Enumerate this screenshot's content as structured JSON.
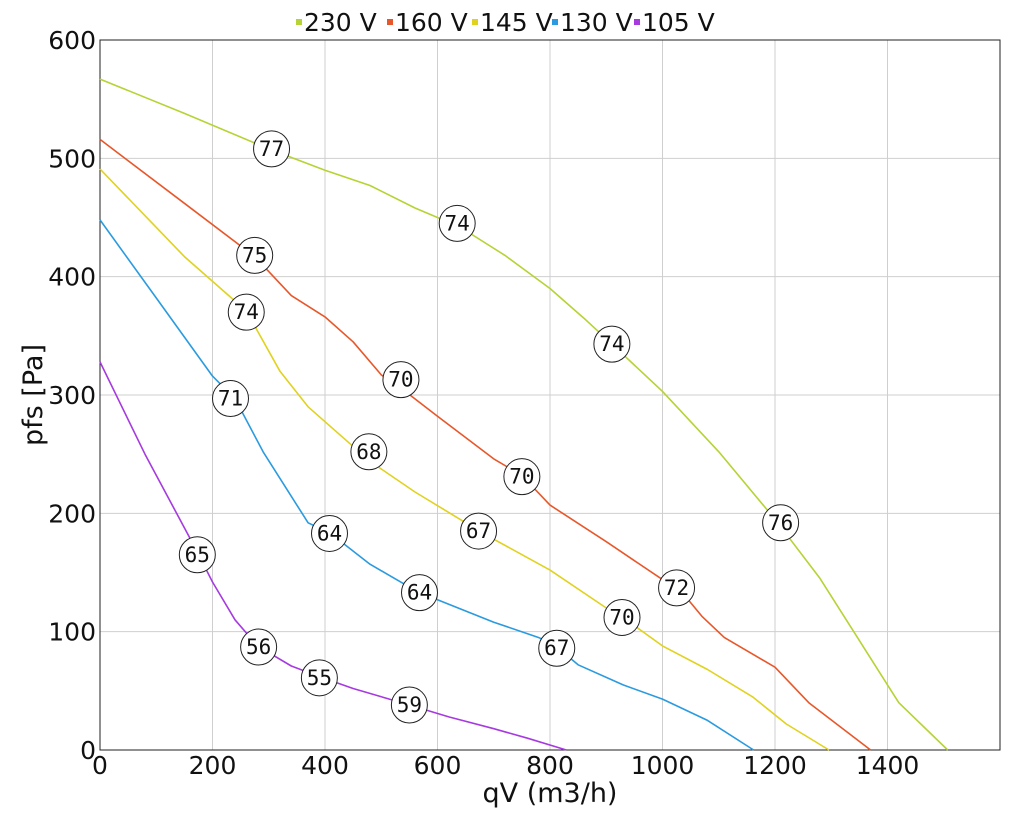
{
  "chart_data": {
    "type": "line",
    "xlabel": "qV (m3/h)",
    "ylabel": "pfs [Pa]",
    "xlim": [
      0,
      1600
    ],
    "ylim": [
      0,
      600
    ],
    "xticks": [
      0,
      200,
      400,
      600,
      800,
      1000,
      1200,
      1400
    ],
    "yticks": [
      0,
      100,
      200,
      300,
      400,
      500,
      600
    ],
    "grid": true,
    "legend_position": "top",
    "series": [
      {
        "name": "230 V",
        "color": "#b5d334",
        "points": [
          [
            0,
            567
          ],
          [
            150,
            538
          ],
          [
            300,
            508
          ],
          [
            400,
            490
          ],
          [
            480,
            477
          ],
          [
            560,
            458
          ],
          [
            640,
            442
          ],
          [
            720,
            418
          ],
          [
            800,
            390
          ],
          [
            860,
            365
          ],
          [
            910,
            343
          ],
          [
            1000,
            303
          ],
          [
            1100,
            252
          ],
          [
            1200,
            195
          ],
          [
            1280,
            145
          ],
          [
            1360,
            85
          ],
          [
            1420,
            40
          ],
          [
            1507,
            0
          ]
        ],
        "markers": [
          {
            "x": 305,
            "y": 508,
            "label": "77"
          },
          {
            "x": 635,
            "y": 445,
            "label": "74"
          },
          {
            "x": 910,
            "y": 343,
            "label": "74"
          },
          {
            "x": 1210,
            "y": 192,
            "label": "76"
          }
        ]
      },
      {
        "name": "160 V",
        "color": "#e8572a",
        "points": [
          [
            0,
            516
          ],
          [
            150,
            462
          ],
          [
            275,
            417
          ],
          [
            340,
            384
          ],
          [
            400,
            366
          ],
          [
            450,
            345
          ],
          [
            500,
            317
          ],
          [
            540,
            304
          ],
          [
            600,
            282
          ],
          [
            700,
            246
          ],
          [
            750,
            232
          ],
          [
            800,
            207
          ],
          [
            900,
            176
          ],
          [
            1000,
            144
          ],
          [
            1030,
            136
          ],
          [
            1070,
            113
          ],
          [
            1110,
            95
          ],
          [
            1200,
            70
          ],
          [
            1260,
            40
          ],
          [
            1370,
            0
          ]
        ],
        "markers": [
          {
            "x": 275,
            "y": 418,
            "label": "75"
          },
          {
            "x": 535,
            "y": 313,
            "label": "70"
          },
          {
            "x": 750,
            "y": 231,
            "label": "70"
          },
          {
            "x": 1025,
            "y": 137,
            "label": "72"
          }
        ]
      },
      {
        "name": "145 V",
        "color": "#e0d21e",
        "points": [
          [
            0,
            491
          ],
          [
            150,
            417
          ],
          [
            260,
            371
          ],
          [
            320,
            320
          ],
          [
            370,
            290
          ],
          [
            480,
            244
          ],
          [
            560,
            218
          ],
          [
            640,
            195
          ],
          [
            670,
            186
          ],
          [
            800,
            152
          ],
          [
            900,
            120
          ],
          [
            930,
            112
          ],
          [
            1000,
            88
          ],
          [
            1080,
            68
          ],
          [
            1160,
            45
          ],
          [
            1220,
            22
          ],
          [
            1296,
            0
          ]
        ],
        "markers": [
          {
            "x": 260,
            "y": 370,
            "label": "74"
          },
          {
            "x": 478,
            "y": 252,
            "label": "68"
          },
          {
            "x": 673,
            "y": 185,
            "label": "67"
          },
          {
            "x": 928,
            "y": 112,
            "label": "70"
          }
        ]
      },
      {
        "name": "130 V",
        "color": "#2a9be0",
        "points": [
          [
            0,
            448
          ],
          [
            100,
            382
          ],
          [
            200,
            316
          ],
          [
            240,
            297
          ],
          [
            290,
            252
          ],
          [
            370,
            192
          ],
          [
            410,
            183
          ],
          [
            480,
            157
          ],
          [
            560,
            135
          ],
          [
            600,
            127
          ],
          [
            700,
            108
          ],
          [
            780,
            95
          ],
          [
            812,
            87
          ],
          [
            850,
            72
          ],
          [
            930,
            55
          ],
          [
            1000,
            43
          ],
          [
            1080,
            25
          ],
          [
            1162,
            0
          ]
        ],
        "markers": [
          {
            "x": 232,
            "y": 297,
            "label": "71"
          },
          {
            "x": 408,
            "y": 183,
            "label": "64"
          },
          {
            "x": 568,
            "y": 133,
            "label": "64"
          },
          {
            "x": 812,
            "y": 86,
            "label": "67"
          }
        ]
      },
      {
        "name": "105 V",
        "color": "#a63ae0",
        "points": [
          [
            0,
            328
          ],
          [
            80,
            250
          ],
          [
            170,
            170
          ],
          [
            200,
            142
          ],
          [
            240,
            110
          ],
          [
            280,
            88
          ],
          [
            340,
            71
          ],
          [
            390,
            62
          ],
          [
            450,
            52
          ],
          [
            550,
            38
          ],
          [
            620,
            28
          ],
          [
            700,
            18
          ],
          [
            760,
            10
          ],
          [
            829,
            0
          ]
        ],
        "markers": [
          {
            "x": 173,
            "y": 165,
            "label": "65"
          },
          {
            "x": 282,
            "y": 87,
            "label": "56"
          },
          {
            "x": 390,
            "y": 61,
            "label": "55"
          },
          {
            "x": 550,
            "y": 38,
            "label": "59"
          }
        ]
      }
    ]
  }
}
